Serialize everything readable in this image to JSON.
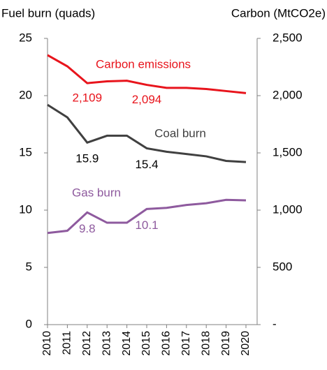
{
  "chart_data": {
    "type": "line",
    "y_label": "Fuel burn (quads)",
    "y2_label": "Carbon (MtCO2e)",
    "categories": [
      "2010",
      "2011",
      "2012",
      "2013",
      "2014",
      "2015",
      "2016",
      "2017",
      "2018",
      "2019",
      "2020"
    ],
    "series": [
      {
        "name": "Carbon emissions",
        "color": "#e8141c",
        "axis": "y2",
        "values": [
          2354,
          2256,
          2109,
          2125,
          2130,
          2094,
          2068,
          2068,
          2058,
          2040,
          2022
        ],
        "value_labels": [
          null,
          null,
          "2,109",
          null,
          null,
          "2,094",
          null,
          null,
          null,
          null,
          null
        ]
      },
      {
        "name": "Coal burn",
        "color": "#404040",
        "values": [
          19.2,
          18.1,
          15.9,
          16.5,
          16.5,
          15.4,
          15.1,
          14.9,
          14.7,
          14.3,
          14.2
        ],
        "labeled": [
          2,
          5
        ]
      },
      {
        "name": "Gas burn",
        "color": "#8e5a9e",
        "values": [
          8.0,
          8.2,
          9.8,
          8.9,
          8.9,
          10.1,
          10.2,
          10.45,
          10.6,
          10.9,
          10.85
        ],
        "labeled": [
          2,
          5
        ]
      }
    ],
    "ylim": [
      0,
      25
    ],
    "yticks": [
      0,
      5,
      10,
      15,
      20,
      25
    ],
    "y2lim": [
      0,
      2500
    ],
    "y2ticks": [
      {
        "value": 0,
        "label": "-"
      },
      500,
      {
        "value": 1000,
        "label": "1,000"
      },
      {
        "value": 1500,
        "label": "1,500"
      },
      {
        "value": 2000,
        "label": "2,000"
      },
      {
        "value": 2500,
        "label": "2,500"
      }
    ]
  }
}
